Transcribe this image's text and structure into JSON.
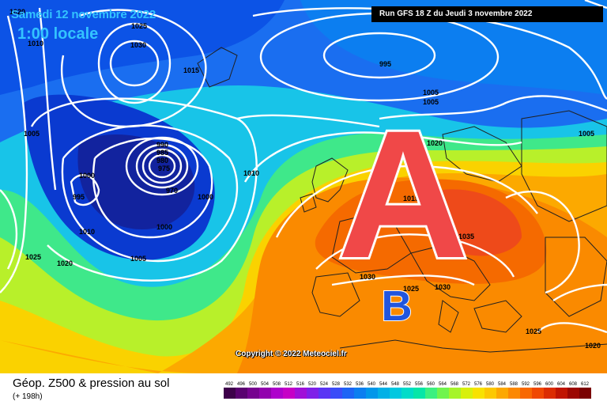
{
  "header": {
    "date": "Samedi 12 novembre 2022",
    "hour": "1:00 locale",
    "run": "Run GFS 18 Z du Jeudi 3 novembre 2022"
  },
  "copyright": "Copyright © 2022 Meteociel.fr",
  "footer": {
    "title": "Géop. Z500 & pression au sol",
    "range": "(+ 198h)"
  },
  "map": {
    "high_marker": "A",
    "low_marker": "B",
    "isobar_labels": [
      "1020",
      "1025",
      "1030",
      "1010",
      "1015",
      "995",
      "1005",
      "1005",
      "1000",
      "995",
      "1010",
      "1000",
      "1005",
      "1025",
      "1020",
      "1010",
      "990",
      "985",
      "980",
      "975",
      "970",
      "1005",
      "1000",
      "1035",
      "1030",
      "1025",
      "1030",
      "1025",
      "1020",
      "1005",
      "1020",
      "1015"
    ],
    "colors": {
      "high_fill": "#f04848",
      "low_fill": "#2255dd"
    }
  },
  "legend": {
    "scale_values": [
      "492",
      "496",
      "500",
      "504",
      "508",
      "512",
      "516",
      "520",
      "524",
      "528",
      "532",
      "536",
      "540",
      "544",
      "548",
      "552",
      "556",
      "560",
      "564",
      "568",
      "572",
      "576",
      "580",
      "584",
      "588",
      "592",
      "596",
      "600",
      "604",
      "608",
      "612"
    ],
    "scale_colors": [
      "#3d004a",
      "#5a0070",
      "#76008f",
      "#9200ae",
      "#ae00cc",
      "#c600c6",
      "#a010d8",
      "#7f20e8",
      "#5a35f4",
      "#3a4cf8",
      "#1d64f5",
      "#0b7ef0",
      "#0097ea",
      "#00b0e6",
      "#00c8e0",
      "#00dcc9",
      "#06e6a8",
      "#3cf080",
      "#70f44e",
      "#a6f42a",
      "#d8f00c",
      "#f8e200",
      "#fcc800",
      "#fca800",
      "#fc8800",
      "#f86800",
      "#f04800",
      "#dc2c00",
      "#c01400",
      "#9c0600",
      "#7a0000"
    ]
  }
}
